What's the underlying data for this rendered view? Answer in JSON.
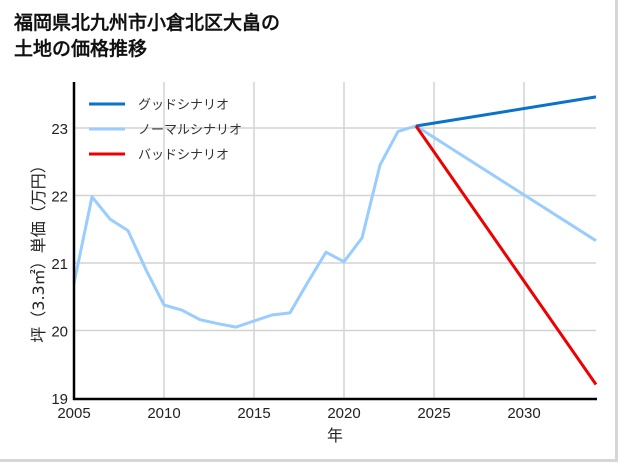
{
  "title_line1": "福岡県北九州市小倉北区大畠の",
  "title_line2": "土地の価格推移",
  "chart_data": {
    "type": "line",
    "title": "福岡県北九州市小倉北区大畠の土地の価格推移",
    "xlabel": "年",
    "ylabel": "坪（3.3㎡）単価（万円）",
    "xlim": [
      2005,
      2034
    ],
    "ylim": [
      19,
      23.5
    ],
    "x_ticks": [
      "2005",
      "2010",
      "2015",
      "2020",
      "2025",
      "2030"
    ],
    "y_ticks": [
      "19",
      "20",
      "21",
      "22",
      "23"
    ],
    "grid": true,
    "legend_position": "upper left",
    "series": [
      {
        "name": "グッドシナリオ",
        "color": "#0a72c8",
        "x": [
          2024,
          2034
        ],
        "values": [
          23.03,
          23.46
        ]
      },
      {
        "name": "ノーマルシナリオ",
        "color": "#99ccff",
        "x": [
          2005,
          2006,
          2007,
          2008,
          2009,
          2010,
          2011,
          2012,
          2013,
          2014,
          2015,
          2016,
          2017,
          2018,
          2019,
          2020,
          2021,
          2022,
          2023,
          2024,
          2034
        ],
        "values": [
          20.7,
          21.98,
          21.65,
          21.48,
          20.9,
          20.38,
          20.3,
          20.16,
          20.1,
          20.05,
          20.14,
          20.23,
          20.26,
          20.72,
          21.16,
          21.02,
          21.37,
          22.45,
          22.95,
          23.03,
          21.33
        ]
      },
      {
        "name": "バッドシナリオ",
        "color": "#ee0000",
        "x": [
          2024,
          2034
        ],
        "values": [
          23.03,
          19.2
        ]
      }
    ]
  }
}
